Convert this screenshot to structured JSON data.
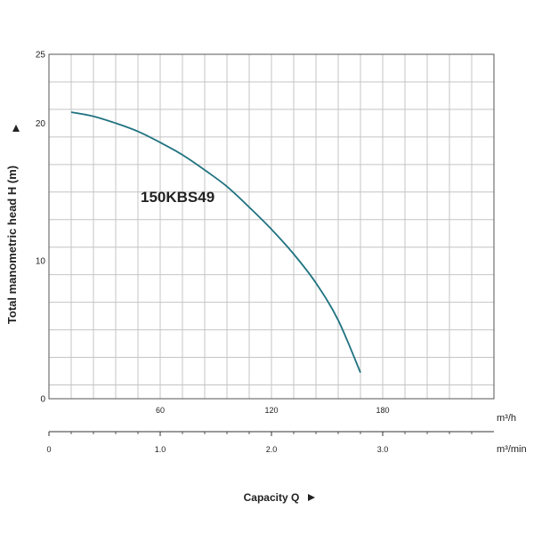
{
  "chart_data": {
    "type": "line",
    "title": "",
    "ylabel": "Total manometric head H (m)",
    "xlabel": "Capacity Q",
    "ylim": [
      0,
      25
    ],
    "y_ticks": [
      "0",
      "10",
      "20",
      "25"
    ],
    "x_primary": {
      "unit": "m³/h",
      "range": [
        0,
        240
      ],
      "ticks": [
        "60",
        "120",
        "180"
      ]
    },
    "x_secondary": {
      "unit": "m³/min",
      "range": [
        0,
        4.0
      ],
      "ticks": [
        "0",
        "1.0",
        "2.0",
        "3.0"
      ]
    },
    "grid": true,
    "series": [
      {
        "name": "150KBS49",
        "color": "#1f7380",
        "x": [
          12,
          24,
          36,
          48,
          60,
          72,
          84,
          96,
          108,
          120,
          132,
          144,
          156,
          168
        ],
        "y": [
          20.8,
          20.5,
          20.0,
          19.4,
          18.6,
          17.7,
          16.6,
          15.4,
          13.9,
          12.3,
          10.5,
          8.4,
          5.7,
          1.9
        ]
      }
    ]
  }
}
